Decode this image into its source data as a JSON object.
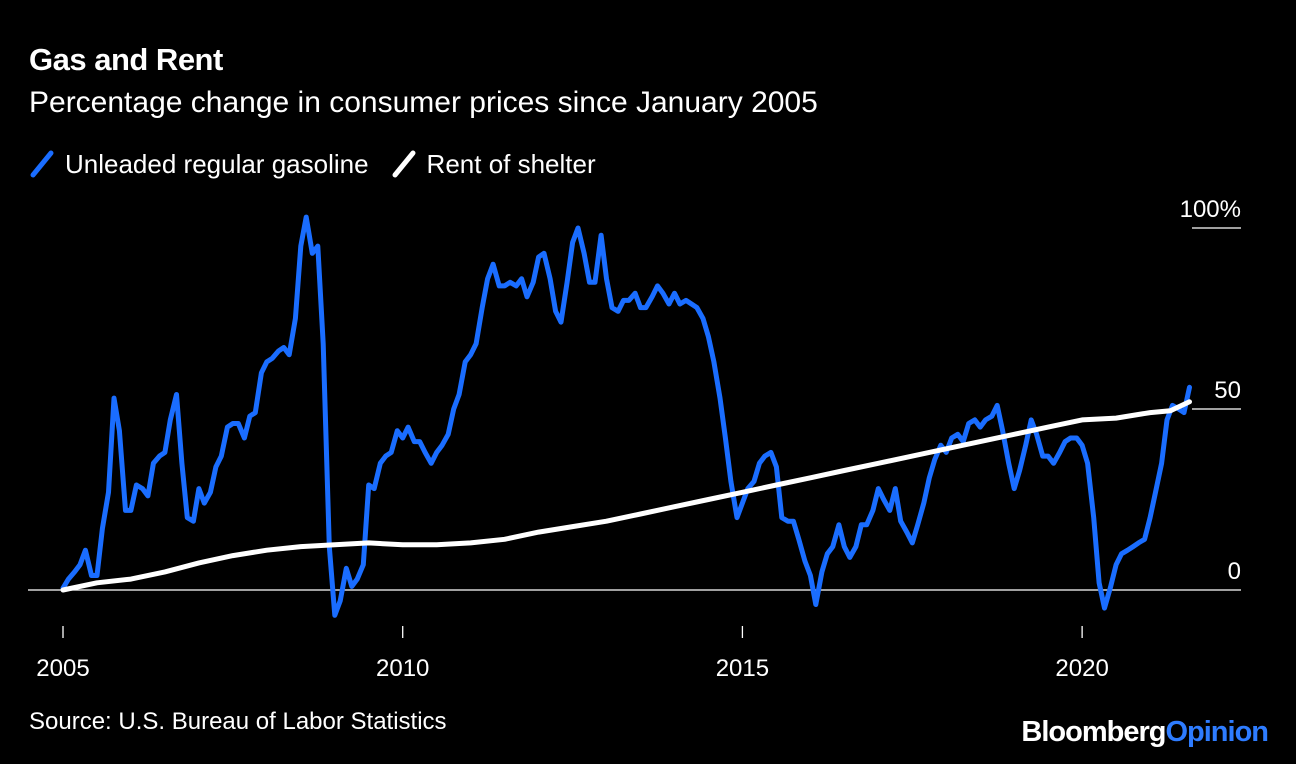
{
  "colors": {
    "gasoline": "#1a6dff",
    "rent": "#ffffff",
    "background": "#000000",
    "brand_accent": "#2e7cff"
  },
  "chart_data": {
    "type": "line",
    "title": "Gas and Rent",
    "subtitle": "Percentage change in consumer prices since January 2005",
    "xlabel": "",
    "ylabel": "",
    "xlim": [
      2005.0,
      2022.0
    ],
    "ylim": [
      -10,
      105
    ],
    "y_ticks": [
      {
        "value": 100,
        "label": "100%"
      },
      {
        "value": 50,
        "label": "50"
      },
      {
        "value": 0,
        "label": "0"
      }
    ],
    "x_ticks": [
      {
        "value": 2005,
        "label": "2005"
      },
      {
        "value": 2010,
        "label": "2010"
      },
      {
        "value": 2015,
        "label": "2015"
      },
      {
        "value": 2020,
        "label": "2020"
      }
    ],
    "legend": [
      "Unleaded regular gasoline",
      "Rent of shelter"
    ],
    "series": [
      {
        "name": "Unleaded regular gasoline",
        "points": [
          [
            2005.0,
            0.5
          ],
          [
            2005.08,
            3
          ],
          [
            2005.17,
            5
          ],
          [
            2005.25,
            7
          ],
          [
            2005.33,
            11
          ],
          [
            2005.42,
            4
          ],
          [
            2005.5,
            4
          ],
          [
            2005.58,
            17
          ],
          [
            2005.67,
            27
          ],
          [
            2005.75,
            53
          ],
          [
            2005.83,
            44
          ],
          [
            2005.92,
            22
          ],
          [
            2006.0,
            22
          ],
          [
            2006.08,
            29
          ],
          [
            2006.17,
            28
          ],
          [
            2006.25,
            26
          ],
          [
            2006.33,
            35
          ],
          [
            2006.42,
            37
          ],
          [
            2006.5,
            38
          ],
          [
            2006.58,
            47
          ],
          [
            2006.67,
            54
          ],
          [
            2006.75,
            35
          ],
          [
            2006.83,
            20
          ],
          [
            2006.92,
            19
          ],
          [
            2007.0,
            28
          ],
          [
            2007.08,
            24
          ],
          [
            2007.17,
            27
          ],
          [
            2007.25,
            34
          ],
          [
            2007.33,
            37
          ],
          [
            2007.42,
            45
          ],
          [
            2007.5,
            46
          ],
          [
            2007.58,
            46
          ],
          [
            2007.67,
            42
          ],
          [
            2007.75,
            48
          ],
          [
            2007.83,
            49
          ],
          [
            2007.92,
            60
          ],
          [
            2008.0,
            63
          ],
          [
            2008.08,
            64
          ],
          [
            2008.17,
            66
          ],
          [
            2008.25,
            67
          ],
          [
            2008.33,
            65
          ],
          [
            2008.42,
            75
          ],
          [
            2008.5,
            95
          ],
          [
            2008.58,
            103
          ],
          [
            2008.67,
            93
          ],
          [
            2008.75,
            95
          ],
          [
            2008.83,
            68
          ],
          [
            2008.92,
            12
          ],
          [
            2009.0,
            -7
          ],
          [
            2009.08,
            -3
          ],
          [
            2009.17,
            6
          ],
          [
            2009.25,
            1
          ],
          [
            2009.33,
            3
          ],
          [
            2009.42,
            7
          ],
          [
            2009.5,
            29
          ],
          [
            2009.58,
            28
          ],
          [
            2009.67,
            35
          ],
          [
            2009.75,
            37
          ],
          [
            2009.83,
            38
          ],
          [
            2009.92,
            44
          ],
          [
            2010.0,
            42
          ],
          [
            2010.08,
            45
          ],
          [
            2010.17,
            41
          ],
          [
            2010.25,
            41
          ],
          [
            2010.33,
            38
          ],
          [
            2010.42,
            35
          ],
          [
            2010.5,
            38
          ],
          [
            2010.58,
            40
          ],
          [
            2010.67,
            43
          ],
          [
            2010.75,
            50
          ],
          [
            2010.83,
            54
          ],
          [
            2010.92,
            63
          ],
          [
            2011.0,
            65
          ],
          [
            2011.08,
            68
          ],
          [
            2011.17,
            78
          ],
          [
            2011.25,
            86
          ],
          [
            2011.33,
            90
          ],
          [
            2011.42,
            84
          ],
          [
            2011.5,
            84
          ],
          [
            2011.58,
            85
          ],
          [
            2011.67,
            84
          ],
          [
            2011.75,
            86
          ],
          [
            2011.83,
            81
          ],
          [
            2011.92,
            85
          ],
          [
            2012.0,
            92
          ],
          [
            2012.08,
            93
          ],
          [
            2012.17,
            86
          ],
          [
            2012.25,
            77
          ],
          [
            2012.33,
            74
          ],
          [
            2012.42,
            85
          ],
          [
            2012.5,
            96
          ],
          [
            2012.58,
            100
          ],
          [
            2012.67,
            93
          ],
          [
            2012.75,
            85
          ],
          [
            2012.83,
            85
          ],
          [
            2012.92,
            98
          ],
          [
            2013.0,
            86
          ],
          [
            2013.08,
            78
          ],
          [
            2013.17,
            77
          ],
          [
            2013.25,
            80
          ],
          [
            2013.33,
            80
          ],
          [
            2013.42,
            82
          ],
          [
            2013.5,
            78
          ],
          [
            2013.58,
            78
          ],
          [
            2013.67,
            81
          ],
          [
            2013.75,
            84
          ],
          [
            2013.83,
            82
          ],
          [
            2013.92,
            79
          ],
          [
            2014.0,
            82
          ],
          [
            2014.08,
            79
          ],
          [
            2014.17,
            80
          ],
          [
            2014.25,
            79
          ],
          [
            2014.33,
            78
          ],
          [
            2014.42,
            75
          ],
          [
            2014.5,
            70
          ],
          [
            2014.58,
            63
          ],
          [
            2014.67,
            53
          ],
          [
            2014.75,
            42
          ],
          [
            2014.83,
            30
          ],
          [
            2014.92,
            20
          ],
          [
            2015.0,
            24
          ],
          [
            2015.08,
            28
          ],
          [
            2015.17,
            30
          ],
          [
            2015.25,
            35
          ],
          [
            2015.33,
            37
          ],
          [
            2015.42,
            38
          ],
          [
            2015.5,
            34
          ],
          [
            2015.58,
            20
          ],
          [
            2015.67,
            19
          ],
          [
            2015.75,
            19
          ],
          [
            2015.83,
            14
          ],
          [
            2015.92,
            8
          ],
          [
            2016.0,
            4
          ],
          [
            2016.08,
            -4
          ],
          [
            2016.17,
            5
          ],
          [
            2016.25,
            10
          ],
          [
            2016.33,
            12
          ],
          [
            2016.42,
            18
          ],
          [
            2016.5,
            12
          ],
          [
            2016.58,
            9
          ],
          [
            2016.67,
            12
          ],
          [
            2016.75,
            18
          ],
          [
            2016.83,
            18
          ],
          [
            2016.92,
            22
          ],
          [
            2017.0,
            28
          ],
          [
            2017.08,
            25
          ],
          [
            2017.17,
            22
          ],
          [
            2017.25,
            28
          ],
          [
            2017.33,
            19
          ],
          [
            2017.42,
            16
          ],
          [
            2017.5,
            13
          ],
          [
            2017.58,
            18
          ],
          [
            2017.67,
            24
          ],
          [
            2017.75,
            31
          ],
          [
            2017.83,
            36
          ],
          [
            2017.92,
            40
          ],
          [
            2018.0,
            38
          ],
          [
            2018.08,
            42
          ],
          [
            2018.17,
            43
          ],
          [
            2018.25,
            41
          ],
          [
            2018.33,
            46
          ],
          [
            2018.42,
            47
          ],
          [
            2018.5,
            45
          ],
          [
            2018.58,
            47
          ],
          [
            2018.67,
            48
          ],
          [
            2018.75,
            51
          ],
          [
            2018.83,
            44
          ],
          [
            2018.92,
            35
          ],
          [
            2019.0,
            28
          ],
          [
            2019.08,
            33
          ],
          [
            2019.17,
            40
          ],
          [
            2019.25,
            47
          ],
          [
            2019.33,
            43
          ],
          [
            2019.42,
            37
          ],
          [
            2019.5,
            37
          ],
          [
            2019.58,
            35
          ],
          [
            2019.67,
            38
          ],
          [
            2019.75,
            41
          ],
          [
            2019.83,
            42
          ],
          [
            2019.92,
            42
          ],
          [
            2020.0,
            40
          ],
          [
            2020.08,
            35
          ],
          [
            2020.17,
            20
          ],
          [
            2020.25,
            2
          ],
          [
            2020.33,
            -5
          ],
          [
            2020.42,
            1
          ],
          [
            2020.5,
            7
          ],
          [
            2020.58,
            10
          ],
          [
            2020.67,
            11
          ],
          [
            2020.75,
            12
          ],
          [
            2020.83,
            13
          ],
          [
            2020.92,
            14
          ],
          [
            2021.0,
            20
          ],
          [
            2021.08,
            27
          ],
          [
            2021.17,
            35
          ],
          [
            2021.25,
            47
          ],
          [
            2021.33,
            51
          ],
          [
            2021.42,
            50
          ],
          [
            2021.5,
            49
          ],
          [
            2021.58,
            56
          ]
        ]
      },
      {
        "name": "Rent of shelter",
        "points": [
          [
            2005.0,
            0
          ],
          [
            2005.5,
            2
          ],
          [
            2006.0,
            3
          ],
          [
            2006.5,
            5
          ],
          [
            2007.0,
            7.5
          ],
          [
            2007.5,
            9.5
          ],
          [
            2008.0,
            11
          ],
          [
            2008.5,
            12
          ],
          [
            2009.0,
            12.5
          ],
          [
            2009.5,
            13
          ],
          [
            2010.0,
            12.5
          ],
          [
            2010.5,
            12.5
          ],
          [
            2011.0,
            13
          ],
          [
            2011.5,
            14
          ],
          [
            2012.0,
            16
          ],
          [
            2012.5,
            17.5
          ],
          [
            2013.0,
            19
          ],
          [
            2013.5,
            21
          ],
          [
            2014.0,
            23
          ],
          [
            2014.5,
            25
          ],
          [
            2015.0,
            27
          ],
          [
            2015.5,
            29
          ],
          [
            2016.0,
            31
          ],
          [
            2016.5,
            33
          ],
          [
            2017.0,
            35
          ],
          [
            2017.5,
            37
          ],
          [
            2018.0,
            39
          ],
          [
            2018.5,
            41
          ],
          [
            2019.0,
            43
          ],
          [
            2019.5,
            45
          ],
          [
            2020.0,
            47
          ],
          [
            2020.5,
            47.5
          ],
          [
            2021.0,
            49
          ],
          [
            2021.3,
            49.5
          ],
          [
            2021.58,
            52
          ]
        ]
      }
    ],
    "source": "Source: U.S. Bureau of Labor Statistics",
    "brand": {
      "primary": "Bloomberg",
      "secondary": "Opinion"
    }
  }
}
